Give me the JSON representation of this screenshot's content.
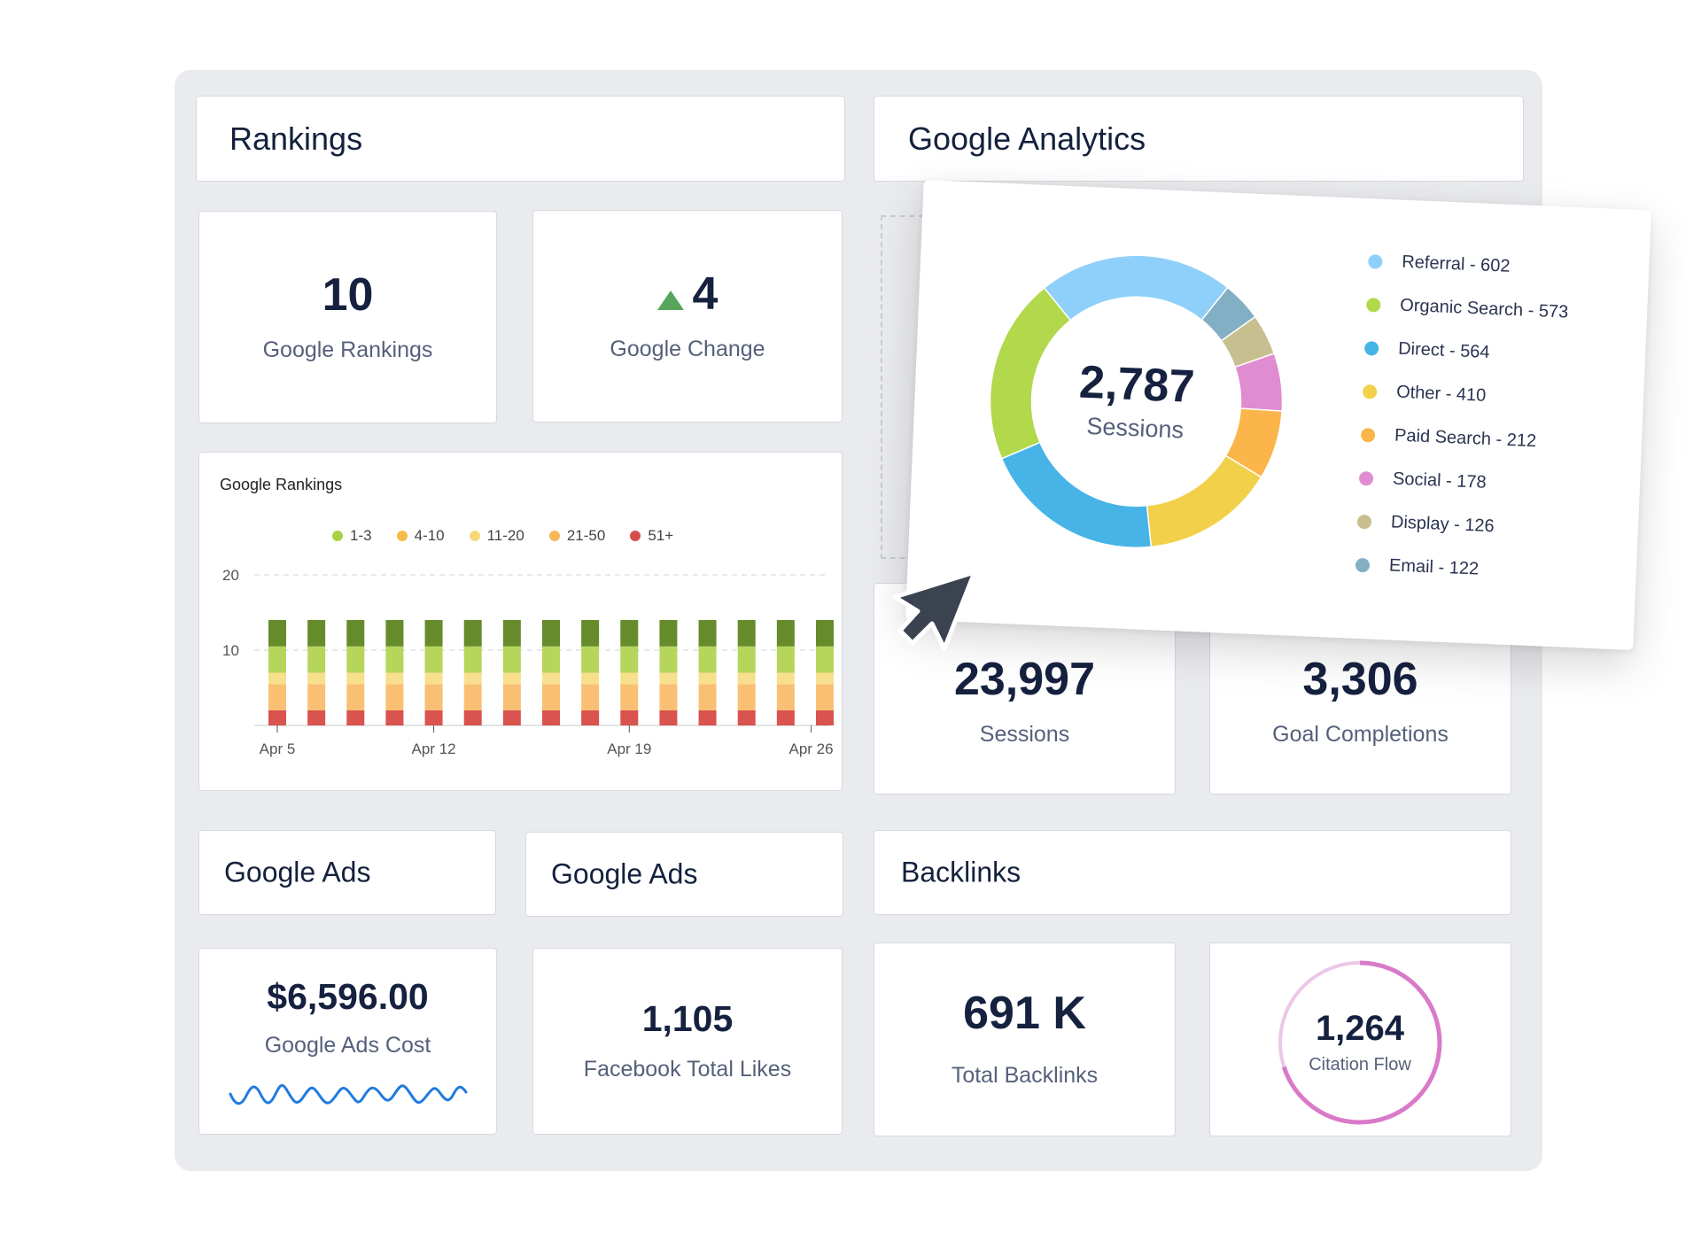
{
  "rankings": {
    "header": "Rankings",
    "google_rankings": {
      "value": "10",
      "label": "Google Rankings"
    },
    "google_change": {
      "value": "4",
      "label": "Google Change",
      "direction": "up"
    },
    "chart_title": "Google Rankings"
  },
  "analytics": {
    "header": "Google Analytics",
    "sessions": {
      "value": "23,997",
      "label": "Sessions"
    },
    "goals": {
      "value": "3,306",
      "label": "Goal Completions"
    }
  },
  "popup": {
    "center_value": "2,787",
    "center_label": "Sessions",
    "legend": [
      {
        "label": "Referral - 602",
        "color": "#8fd0fb"
      },
      {
        "label": "Organic Search - 573",
        "color": "#b2d84b"
      },
      {
        "label": "Direct - 564",
        "color": "#47b4e8"
      },
      {
        "label": "Other - 410",
        "color": "#f2d04a"
      },
      {
        "label": "Paid Search - 212",
        "color": "#fbb54a"
      },
      {
        "label": "Social - 178",
        "color": "#e08cd0"
      },
      {
        "label": "Display - 126",
        "color": "#c7bf90"
      },
      {
        "label": "Email - 122",
        "color": "#82afc4"
      }
    ]
  },
  "ads1": {
    "header": "Google Ads",
    "value": "$6,596.00",
    "label": "Google Ads Cost"
  },
  "ads2": {
    "header": "Google Ads",
    "value": "1,105",
    "label": "Facebook Total Likes"
  },
  "backlinks": {
    "header": "Backlinks",
    "total": {
      "value": "691 K",
      "label": "Total Backlinks"
    },
    "citation": {
      "value": "1,264",
      "label": "Citation Flow"
    }
  },
  "icons": {
    "trend": "triangle-up-icon",
    "cursor": "mouse-pointer-icon"
  },
  "chart_data": [
    {
      "type": "bar",
      "stacked": true,
      "title": "Google Rankings",
      "x_ticks": [
        "Apr 5",
        "Apr 12",
        "Apr 19",
        "Apr 26"
      ],
      "ylim": [
        0,
        20
      ],
      "yticks": [
        10,
        20
      ],
      "legend": "top",
      "categories_count": 15,
      "series": [
        {
          "name": "51+",
          "color": "#d9534f",
          "values": [
            2,
            2,
            2,
            2,
            2,
            2,
            2,
            2,
            2,
            2,
            2,
            2,
            2,
            2,
            2
          ]
        },
        {
          "name": "21-50",
          "color": "#f9c074",
          "values": [
            3.5,
            3.5,
            3.5,
            3.5,
            3.5,
            3.5,
            3.5,
            3.5,
            3.5,
            3.5,
            3.5,
            3.5,
            3.5,
            3.5,
            3.5
          ]
        },
        {
          "name": "11-20",
          "color": "#f8df8e",
          "values": [
            1.5,
            1.5,
            1.5,
            1.5,
            1.5,
            1.5,
            1.5,
            1.5,
            1.5,
            1.5,
            1.5,
            1.5,
            1.5,
            1.5,
            1.5
          ]
        },
        {
          "name": "4-10",
          "color": "#f8c065",
          "values": [
            0,
            0,
            0,
            0,
            0,
            0,
            0,
            0,
            0,
            0,
            0,
            0,
            0,
            0,
            0
          ]
        },
        {
          "name": "1-3",
          "color": "#b6d65b",
          "values": [
            3.5,
            3.5,
            3.5,
            3.5,
            3.5,
            3.5,
            3.5,
            3.5,
            3.5,
            3.5,
            3.5,
            3.5,
            3.5,
            3.5,
            3.5
          ]
        },
        {
          "name": "",
          "color": "#668b2a",
          "values": [
            3.5,
            3.5,
            3.5,
            3.5,
            3.5,
            3.5,
            3.5,
            3.5,
            3.5,
            3.5,
            3.5,
            3.5,
            3.5,
            3.5,
            3.5
          ]
        }
      ],
      "legend_entries": [
        {
          "name": "1-3",
          "color": "#a9d144"
        },
        {
          "name": "4-10",
          "color": "#f6bb4a"
        },
        {
          "name": "11-20",
          "color": "#f6d87a"
        },
        {
          "name": "21-50",
          "color": "#f8b65a"
        },
        {
          "name": "51+",
          "color": "#d64d4d"
        }
      ]
    },
    {
      "type": "pie",
      "donut": true,
      "title": "",
      "center": "2,787 Sessions",
      "categories": [
        "Referral",
        "Organic Search",
        "Direct",
        "Other",
        "Paid Search",
        "Social",
        "Display",
        "Email"
      ],
      "values": [
        602,
        573,
        564,
        410,
        212,
        178,
        126,
        122
      ],
      "colors": [
        "#8fd0fb",
        "#b2d84b",
        "#47b4e8",
        "#f2d04a",
        "#fbb54a",
        "#e08cd0",
        "#c7bf90",
        "#82afc4"
      ],
      "legend": "right"
    }
  ]
}
